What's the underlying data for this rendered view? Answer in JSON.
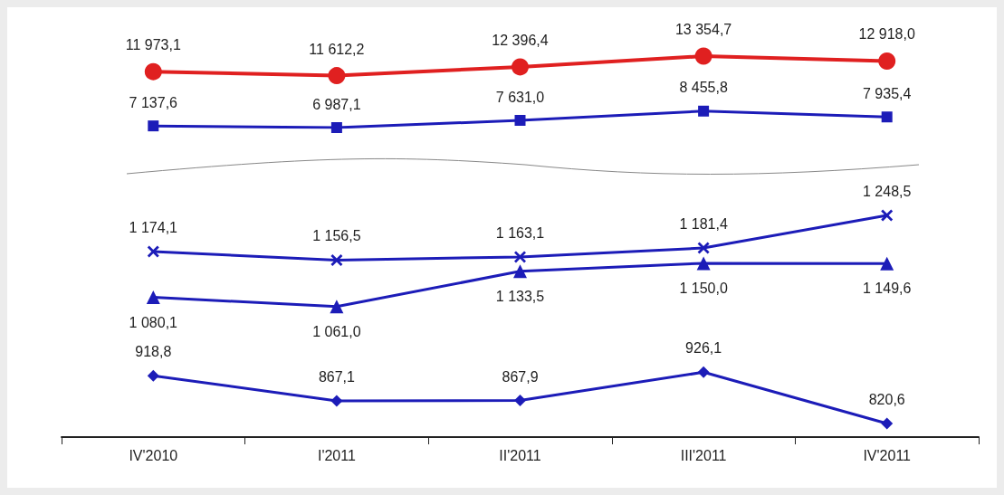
{
  "chart_data": [
    {
      "type": "line",
      "tick_labels": false,
      "grid": false,
      "line_style": "solid",
      "series": [
        {
          "color": "#e02020",
          "marker": "circle",
          "values": [
            11973.1,
            11612.2,
            12396.4,
            13354.7,
            12918.0
          ],
          "value_labels": [
            "11 973,1",
            "11 612,2",
            "12 396,4",
            "13 354,7",
            "12 918,0"
          ]
        },
        {
          "color": "#1c1cb8",
          "marker": "square",
          "values": [
            7137.6,
            6987.1,
            7631.0,
            8455.8,
            7935.4
          ],
          "value_labels": [
            "7 137,6",
            "6 987,1",
            "7 631,0",
            "8 455,8",
            "7 935,4"
          ]
        }
      ]
    },
    {
      "type": "line",
      "categories": [
        "IV'2010",
        "I'2011",
        "II'2011",
        "III'2011",
        "IV'2011"
      ],
      "tick_labels": "x",
      "grid": false,
      "line_style": "solid",
      "series": [
        {
          "color": "#1c1cb8",
          "marker": "cross",
          "values": [
            1174.1,
            1156.5,
            1163.1,
            1181.4,
            1248.5
          ],
          "value_labels": [
            "1 174,1",
            "1 156,5",
            "1 163,1",
            "1 181,4",
            "1 248,5"
          ]
        },
        {
          "color": "#1c1cb8",
          "marker": "triangle",
          "values": [
            1080.1,
            1061.0,
            1133.5,
            1150.0,
            1149.6
          ],
          "value_labels": [
            "1 080,1",
            "1 061,0",
            "1 133,5",
            "1 150,0",
            "1 149,6"
          ]
        },
        {
          "color": "#1c1cb8",
          "marker": "diamond",
          "values": [
            918.8,
            867.1,
            867.9,
            926.1,
            820.6
          ],
          "value_labels": [
            "918,8",
            "867,1",
            "867,9",
            "926,1",
            "820,6"
          ]
        }
      ]
    }
  ]
}
